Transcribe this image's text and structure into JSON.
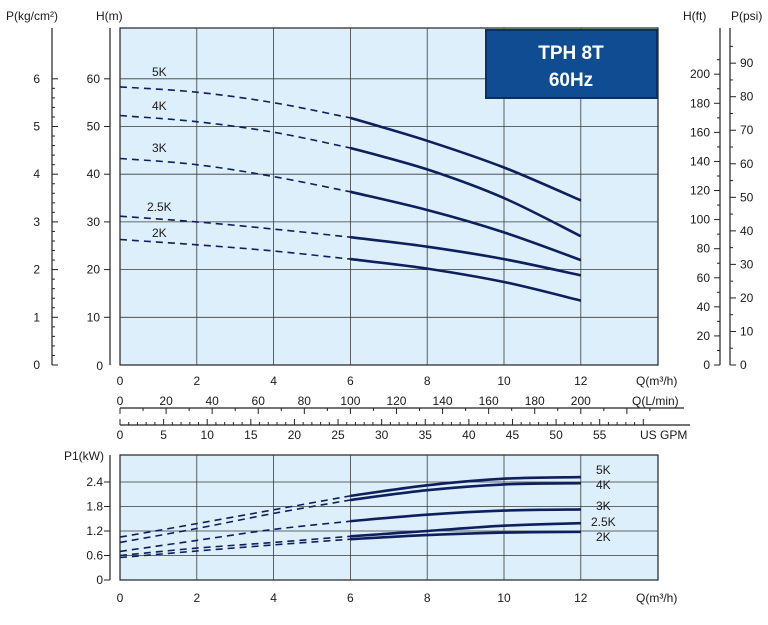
{
  "title_box": {
    "line1": "TPH 8T",
    "line2": "60Hz",
    "color": "#0f4c92"
  },
  "colors": {
    "plot_bg": "#dcefFB",
    "curve": "#0d1f5c",
    "grid": "#3a3a3a"
  },
  "chart_data": [
    {
      "type": "line",
      "name_printed": "H(m)",
      "ylabel": "H(m)",
      "ylabel_left_outer": "P(kg/cm²)",
      "ylabel_right_1": "H(ft)",
      "ylabel_right_2": "P(psi)",
      "xlabel": "Q(m³/h)",
      "xlabel_2": "Q(L/min)",
      "xlabel_3": "US GPM",
      "xlim": [
        0,
        14
      ],
      "ylim": [
        0,
        70
      ],
      "x_ticks": [
        "0",
        "2",
        "4",
        "6",
        "8",
        "10",
        "12"
      ],
      "y_ticks": [
        "10",
        "20",
        "30",
        "40",
        "50",
        "60"
      ],
      "y_zero_label": "0",
      "lmin_ticks": [
        "0",
        "20",
        "40",
        "60",
        "80",
        "100",
        "120",
        "140",
        "160",
        "180",
        "200"
      ],
      "gpm_ticks": [
        "0",
        "5",
        "10",
        "15",
        "20",
        "25",
        "30",
        "35",
        "40",
        "45",
        "50",
        "55"
      ],
      "kg_ticks": [
        "0",
        "1",
        "2",
        "3",
        "4",
        "5",
        "6"
      ],
      "ft_ticks": [
        "0",
        "20",
        "40",
        "60",
        "80",
        "100",
        "120",
        "140",
        "160",
        "180",
        "200"
      ],
      "psi_ticks": [
        "0",
        "10",
        "20",
        "30",
        "40",
        "50",
        "60",
        "70",
        "80",
        "90"
      ],
      "grid": true,
      "dashed_until_x": 6,
      "series": [
        {
          "name": "5K",
          "x": [
            0,
            2,
            4,
            6,
            8,
            10,
            12
          ],
          "y": [
            58.3,
            57.2,
            55.0,
            51.8,
            47.0,
            41.4,
            34.5
          ]
        },
        {
          "name": "4K",
          "x": [
            0,
            2,
            4,
            6,
            8,
            10,
            12
          ],
          "y": [
            52.3,
            51.0,
            48.8,
            45.5,
            41.0,
            35.0,
            27.0
          ]
        },
        {
          "name": "3K",
          "x": [
            0,
            2,
            4,
            6,
            8,
            10,
            12
          ],
          "y": [
            43.3,
            42.0,
            39.5,
            36.3,
            32.5,
            27.8,
            22.0
          ]
        },
        {
          "name": "2.5K",
          "x": [
            0,
            2,
            4,
            6,
            8,
            10,
            12
          ],
          "y": [
            31.2,
            30.0,
            28.5,
            26.8,
            24.8,
            22.2,
            18.8
          ]
        },
        {
          "name": "2K",
          "x": [
            0,
            2,
            4,
            6,
            8,
            10,
            12
          ],
          "y": [
            26.3,
            25.2,
            23.9,
            22.2,
            20.2,
            17.4,
            13.5
          ]
        }
      ]
    },
    {
      "type": "line",
      "ylabel": "P1(kW)",
      "xlabel": "Q(m³/h)",
      "xlim": [
        0,
        14
      ],
      "ylim": [
        0,
        3.0
      ],
      "x_ticks": [
        "0",
        "2",
        "4",
        "6",
        "8",
        "10",
        "12"
      ],
      "y_ticks": [
        "0",
        "0.6",
        "1.2",
        "1.8",
        "2.4"
      ],
      "grid": true,
      "dashed_until_x": 6,
      "series": [
        {
          "name": "5K",
          "x": [
            0,
            2,
            4,
            6,
            8,
            10,
            12
          ],
          "y": [
            1.05,
            1.38,
            1.72,
            2.06,
            2.32,
            2.48,
            2.52
          ]
        },
        {
          "name": "4K",
          "x": [
            0,
            2,
            4,
            6,
            8,
            10,
            12
          ],
          "y": [
            0.92,
            1.26,
            1.63,
            1.96,
            2.2,
            2.34,
            2.37
          ]
        },
        {
          "name": "3K",
          "x": [
            0,
            2,
            4,
            6,
            8,
            10,
            12
          ],
          "y": [
            0.7,
            0.97,
            1.24,
            1.44,
            1.6,
            1.7,
            1.73
          ]
        },
        {
          "name": "2.5K",
          "x": [
            0,
            2,
            4,
            6,
            8,
            10,
            12
          ],
          "y": [
            0.6,
            0.78,
            0.92,
            1.07,
            1.2,
            1.33,
            1.39
          ]
        },
        {
          "name": "2K",
          "x": [
            0,
            2,
            4,
            6,
            8,
            10,
            12
          ],
          "y": [
            0.55,
            0.71,
            0.86,
            1.0,
            1.1,
            1.16,
            1.18
          ]
        }
      ]
    }
  ]
}
